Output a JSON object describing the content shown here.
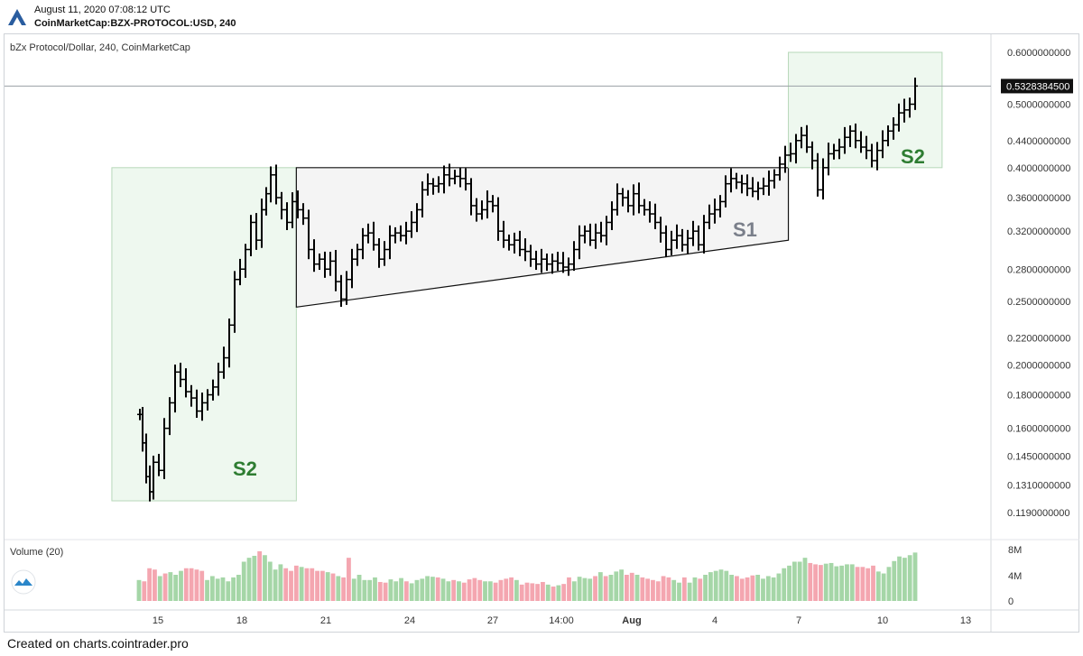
{
  "header": {
    "timestamp": "August 11, 2020 07:08:12 UTC",
    "symbol": "CoinMarketCap:BZX-PROTOCOL:USD, 240"
  },
  "footer": {
    "text": "Created on charts.cointrader.pro"
  },
  "icons": {
    "logo": "cointrader-logo-icon",
    "volume_toggle": "eye-cloud-icon"
  },
  "colors": {
    "zone_green": "#2e7d32",
    "zone_fill": "#e8f5e9",
    "triangle_fill": "#f4f4f4",
    "s1_label": "#7a7f8a",
    "vol_up": "#a5d6a7",
    "vol_down": "#f4a6b0",
    "candle": "#000000"
  },
  "chart_data": {
    "type": "candlestick",
    "title": "bZx Protocol/Dollar, 240, CoinMarketCap",
    "price_axis": {
      "ticks": [
        "0.6000000000",
        "0.5000000000",
        "0.4400000000",
        "0.4000000000",
        "0.3600000000",
        "0.3200000000",
        "0.2800000000",
        "0.2500000000",
        "0.2200000000",
        "0.2000000000",
        "0.1800000000",
        "0.1600000000",
        "0.1450000000",
        "0.1310000000",
        "0.1190000000"
      ],
      "current_price": "0.5328384500",
      "scale": "log"
    },
    "x_axis": {
      "ticks": [
        "15",
        "18",
        "21",
        "24",
        "27",
        "14:00",
        "Aug",
        "4",
        "7",
        "10",
        "13"
      ],
      "bold_tick": "Aug"
    },
    "annotations": [
      {
        "label": "S2",
        "type": "rectangle",
        "from_date": "2020-07-14",
        "to_date": "2020-07-20",
        "low": 0.124,
        "high": 0.4
      },
      {
        "label": "S1",
        "type": "triangle",
        "from_date": "2020-07-20",
        "to_date": "2020-08-06",
        "low_start": 0.245,
        "low_end": 0.31,
        "high": 0.4
      },
      {
        "label": "S2",
        "type": "rectangle",
        "from_date": "2020-08-06",
        "to_date": "2020-08-11",
        "low": 0.4,
        "high": 0.6
      }
    ],
    "volume": {
      "title": "Volume (20)",
      "ticks": [
        "8M",
        "4M",
        "0"
      ],
      "series": [
        3.2,
        3.0,
        5.0,
        4.8,
        3.8,
        4.2,
        4.4,
        4.0,
        4.6,
        5.0,
        5.0,
        4.8,
        4.6,
        3.2,
        3.8,
        3.4,
        3.6,
        3.0,
        3.6,
        4.0,
        6.0,
        6.6,
        6.9,
        7.6,
        7.0,
        6.0,
        4.8,
        5.6,
        5.0,
        4.6,
        5.4,
        5.2,
        5.0,
        5.0,
        4.6,
        4.6,
        4.4,
        4.2,
        3.8,
        3.6,
        6.6,
        3.4,
        4.0,
        3.2,
        3.2,
        3.6,
        2.9,
        2.8,
        3.3,
        3.0,
        3.5,
        3.0,
        2.7,
        3.2,
        3.4,
        3.8,
        3.7,
        3.6,
        3.4,
        3.0,
        3.2,
        3.0,
        2.8,
        3.3,
        3.5,
        3.2,
        3.0,
        3.0,
        2.8,
        3.2,
        3.4,
        3.6,
        3.2,
        2.5,
        2.8,
        2.7,
        2.6,
        2.9,
        2.5,
        2.2,
        2.4,
        2.6,
        3.6,
        3.0,
        3.7,
        3.5,
        3.4,
        3.8,
        4.4,
        3.8,
        4.0,
        4.5,
        4.8,
        4.0,
        4.3,
        4.0,
        3.6,
        3.4,
        3.2,
        3.0,
        3.8,
        3.6,
        3.2,
        2.8,
        3.6,
        2.8,
        3.6,
        3.4,
        4.0,
        4.4,
        4.6,
        4.8,
        4.6,
        4.0,
        3.8,
        3.4,
        3.6,
        3.9,
        4.0,
        3.4,
        3.8,
        3.6,
        4.2,
        5.0,
        5.4,
        6.0,
        6.0,
        6.6,
        5.8,
        5.6,
        5.5,
        5.7,
        5.8,
        5.3,
        5.4,
        5.6,
        5.6,
        5.2,
        5.2,
        5.0,
        5.4,
        4.5,
        4.2,
        5.2,
        6.1,
        6.8,
        6.6,
        7.0,
        7.4
      ]
    }
  }
}
